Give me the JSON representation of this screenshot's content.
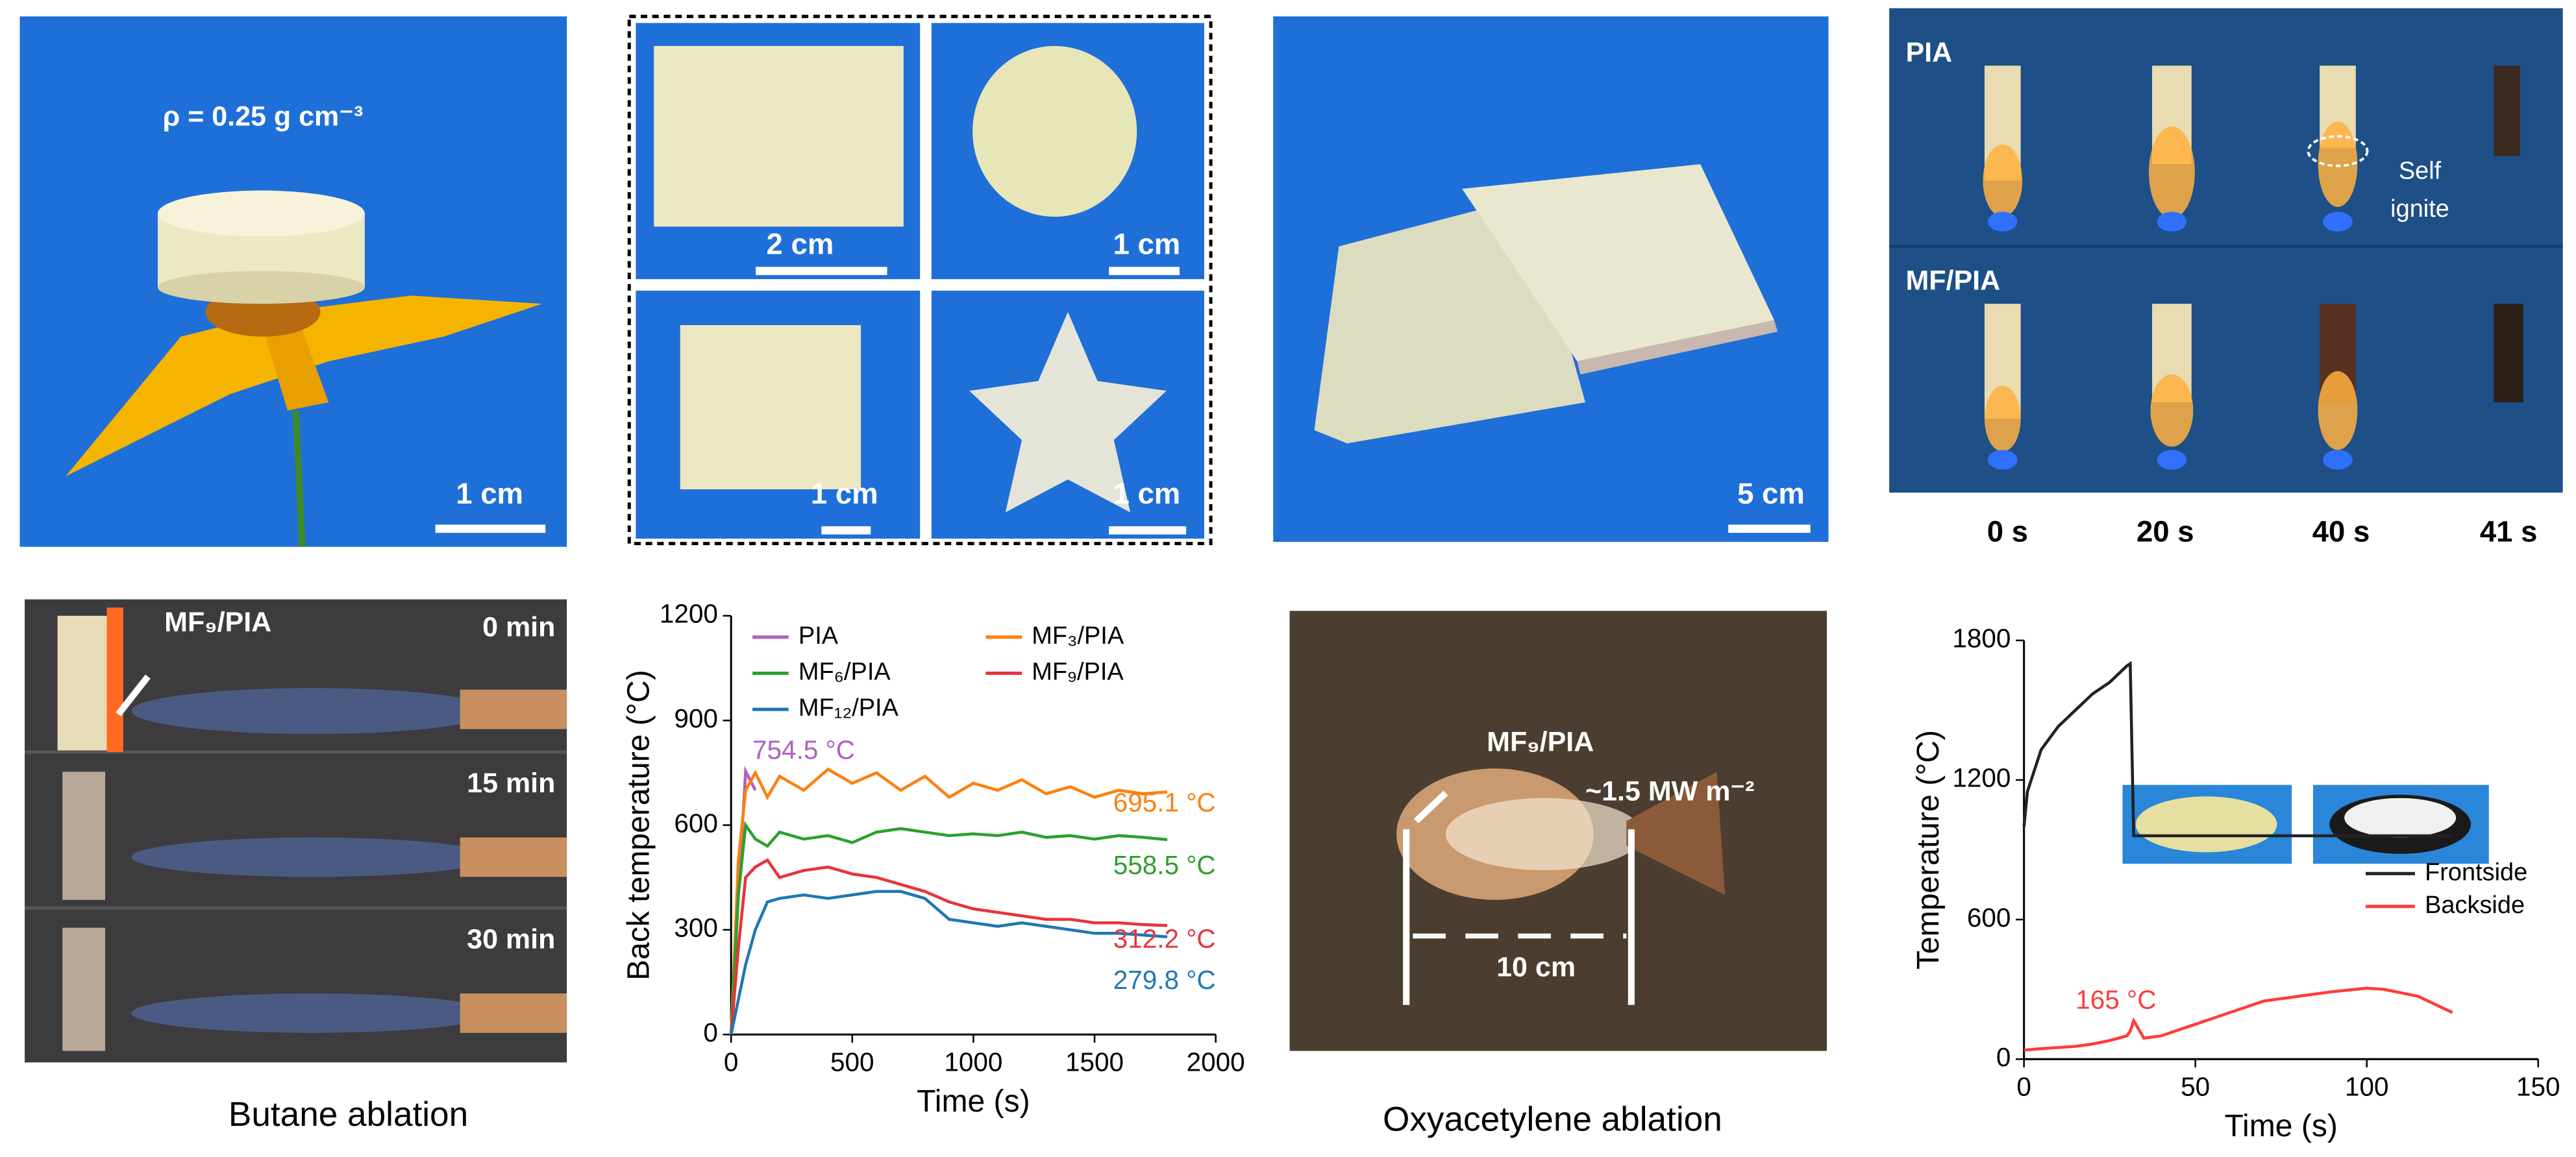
{
  "panels": {
    "a": {
      "density": "ρ = 0.25 g cm⁻³",
      "scale": "1 cm"
    },
    "b": {
      "scales": [
        "2 cm",
        "1 cm",
        "1 cm",
        "1 cm"
      ]
    },
    "c": {
      "scale": "5 cm"
    },
    "d": {
      "rows": [
        "PIA",
        "MF/PIA"
      ],
      "note": [
        "Self",
        "ignite"
      ],
      "times": [
        "0 s",
        "20 s",
        "40 s",
        "41 s"
      ]
    },
    "e": {
      "sample": "MF₉/PIA",
      "times": [
        "0 min",
        "15 min",
        "30 min"
      ],
      "caption": "Butane ablation"
    },
    "g": {
      "sample": "MF₉/PIA",
      "flux": "~1.5 MW m⁻²",
      "distance": "10 cm",
      "caption": "Oxyacetylene ablation"
    }
  },
  "chart_data": [
    {
      "type": "line",
      "xlabel": "Time (s)",
      "ylabel": "Back temperature (°C)",
      "xlim": [
        0,
        2000
      ],
      "xticks": [
        0,
        500,
        1000,
        1500,
        2000
      ],
      "ylim": [
        0,
        1200
      ],
      "yticks": [
        0,
        300,
        600,
        900,
        1200
      ],
      "x": [
        0,
        30,
        60,
        100,
        150,
        200,
        300,
        400,
        500,
        600,
        700,
        800,
        900,
        1000,
        1100,
        1200,
        1300,
        1400,
        1500,
        1600,
        1700,
        1800
      ],
      "series": [
        {
          "name": "PIA",
          "color": "#b060c0",
          "values": [
            0,
            400,
            754.5,
            700,
            null,
            null,
            null,
            null,
            null,
            null,
            null,
            null,
            null,
            null,
            null,
            null,
            null,
            null,
            null,
            null,
            null,
            null
          ]
        },
        {
          "name": "MF₃/PIA",
          "color": "#ff7f0e",
          "values": [
            0,
            500,
            700,
            750,
            680,
            740,
            700,
            760,
            720,
            750,
            700,
            740,
            680,
            720,
            700,
            730,
            690,
            710,
            680,
            700,
            690,
            695.1
          ]
        },
        {
          "name": "MF₆/PIA",
          "color": "#2ca02c",
          "values": [
            0,
            400,
            600,
            560,
            540,
            580,
            560,
            570,
            550,
            580,
            590,
            580,
            570,
            575,
            570,
            580,
            565,
            570,
            560,
            570,
            565,
            558.5
          ]
        },
        {
          "name": "MF₉/PIA",
          "color": "#e8333a",
          "values": [
            0,
            250,
            450,
            480,
            500,
            450,
            470,
            480,
            460,
            450,
            430,
            410,
            380,
            360,
            350,
            340,
            330,
            330,
            320,
            320,
            315,
            312.2
          ]
        },
        {
          "name": "MF₁₂/PIA",
          "color": "#1f77b4",
          "values": [
            0,
            100,
            200,
            300,
            380,
            390,
            400,
            390,
            400,
            410,
            410,
            390,
            330,
            320,
            310,
            320,
            310,
            300,
            290,
            290,
            285,
            279.8
          ]
        }
      ],
      "annotations": [
        {
          "text": "754.5 °C",
          "color": "#b060c0"
        },
        {
          "text": "695.1 °C",
          "color": "#ff7f0e"
        },
        {
          "text": "558.5 °C",
          "color": "#2ca02c"
        },
        {
          "text": "312.2 °C",
          "color": "#e8333a"
        },
        {
          "text": "279.8 °C",
          "color": "#1f77b4"
        }
      ]
    },
    {
      "type": "line",
      "xlabel": "Time (s)",
      "ylabel": "Temperature (°C)",
      "xlim": [
        0,
        150
      ],
      "xticks": [
        0,
        50,
        100,
        150
      ],
      "ylim": [
        0,
        1800
      ],
      "yticks": [
        0,
        600,
        1200,
        1800
      ],
      "x": [
        0,
        1,
        5,
        10,
        15,
        20,
        25,
        30,
        31,
        32,
        35,
        40,
        50,
        60,
        70,
        80,
        90,
        100,
        105,
        115,
        125
      ],
      "series": [
        {
          "name": "Frontside",
          "color": "#222222",
          "values": [
            1000,
            1150,
            1330,
            1430,
            1500,
            1570,
            1620,
            1690,
            1700,
            960,
            960,
            960,
            960,
            960,
            960,
            960,
            960,
            960,
            960,
            960,
            960
          ]
        },
        {
          "name": "Backside",
          "color": "#ff3b3b",
          "values": [
            40,
            40,
            45,
            50,
            55,
            65,
            80,
            100,
            120,
            165,
            90,
            100,
            150,
            200,
            250,
            270,
            290,
            305,
            300,
            270,
            200
          ]
        }
      ],
      "annotations": [
        {
          "text": "165 °C",
          "color": "#ff3b3b"
        }
      ]
    }
  ]
}
